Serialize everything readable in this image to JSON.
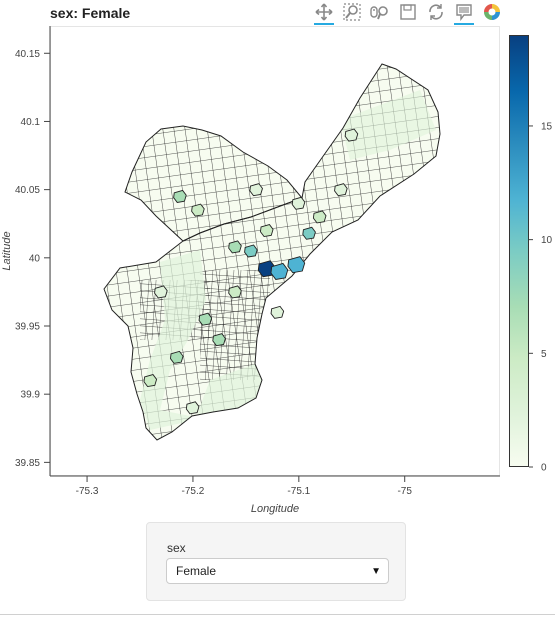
{
  "plot": {
    "title": "sex: Female"
  },
  "toolbar": {
    "tools": [
      {
        "name": "pan-tool",
        "icon": "pan-icon",
        "active": true
      },
      {
        "name": "box-zoom-tool",
        "icon": "box-zoom-icon",
        "active": false
      },
      {
        "name": "wheel-zoom-tool",
        "icon": "wheel-zoom-icon",
        "active": false
      },
      {
        "name": "save-tool",
        "icon": "save-icon",
        "active": false
      },
      {
        "name": "reset-tool",
        "icon": "reset-icon",
        "active": false
      },
      {
        "name": "hover-tool",
        "icon": "hover-icon",
        "active": true
      },
      {
        "name": "bokeh-logo",
        "icon": "bokeh-logo-icon",
        "active": false
      }
    ]
  },
  "chart_data": {
    "type": "choropleth",
    "title": "sex: Female",
    "xlabel": "Longitude",
    "ylabel": "Latitude",
    "xlim": [
      -75.335,
      -74.91
    ],
    "ylim": [
      39.84,
      40.17
    ],
    "xticks": [
      -75.3,
      -75.2,
      -75.1,
      -75
    ],
    "xtick_labels": [
      "-75.3",
      "-75.2",
      "-75.1",
      "-75"
    ],
    "yticks": [
      39.85,
      39.9,
      39.95,
      40,
      40.05,
      40.1,
      40.15
    ],
    "ytick_labels": [
      "39.85",
      "39.9",
      "39.95",
      "40",
      "40.05",
      "40.1",
      "40.15"
    ],
    "colorbar": {
      "range": [
        0,
        19
      ],
      "ticks": [
        0,
        5,
        10,
        15
      ],
      "tick_labels": [
        "0",
        "5",
        "10",
        "15"
      ],
      "palette": [
        "#f7fcf0",
        "#e0f3db",
        "#ccebc5",
        "#a8ddb5",
        "#7bccc4",
        "#4eb3d3",
        "#2b8cbe",
        "#0868ac",
        "#084081"
      ]
    },
    "grid": false,
    "highlighted_tracts": [
      {
        "lon": -75.13,
        "lat": 39.992,
        "value": 18
      },
      {
        "lon": -75.118,
        "lat": 39.99,
        "value": 13
      },
      {
        "lon": -75.102,
        "lat": 39.995,
        "value": 11
      },
      {
        "lon": -75.145,
        "lat": 40.005,
        "value": 9
      },
      {
        "lon": -75.16,
        "lat": 40.008,
        "value": 8
      },
      {
        "lon": -75.09,
        "lat": 40.018,
        "value": 9
      },
      {
        "lon": -75.188,
        "lat": 39.955,
        "value": 7
      },
      {
        "lon": -75.175,
        "lat": 39.94,
        "value": 8
      },
      {
        "lon": -75.215,
        "lat": 39.927,
        "value": 6
      },
      {
        "lon": -75.212,
        "lat": 40.045,
        "value": 6
      },
      {
        "lon": -75.13,
        "lat": 40.02,
        "value": 5
      },
      {
        "lon": -75.08,
        "lat": 40.03,
        "value": 5
      },
      {
        "lon": -75.24,
        "lat": 39.91,
        "value": 4
      },
      {
        "lon": -75.16,
        "lat": 39.975,
        "value": 4
      },
      {
        "lon": -75.195,
        "lat": 40.035,
        "value": 4
      },
      {
        "lon": -75.23,
        "lat": 39.975,
        "value": 3
      },
      {
        "lon": -75.06,
        "lat": 40.05,
        "value": 3
      },
      {
        "lon": -75.1,
        "lat": 40.04,
        "value": 3
      },
      {
        "lon": -75.14,
        "lat": 40.05,
        "value": 3
      },
      {
        "lon": -75.05,
        "lat": 40.09,
        "value": 2
      },
      {
        "lon": -75.2,
        "lat": 39.89,
        "value": 2
      },
      {
        "lon": -75.12,
        "lat": 39.96,
        "value": 2
      }
    ]
  },
  "widget": {
    "label": "sex",
    "selected": "Female",
    "options": [
      "Female"
    ]
  },
  "colors": {
    "outline": "#222222",
    "background": "#ffffff",
    "accent": "#26aae1"
  }
}
